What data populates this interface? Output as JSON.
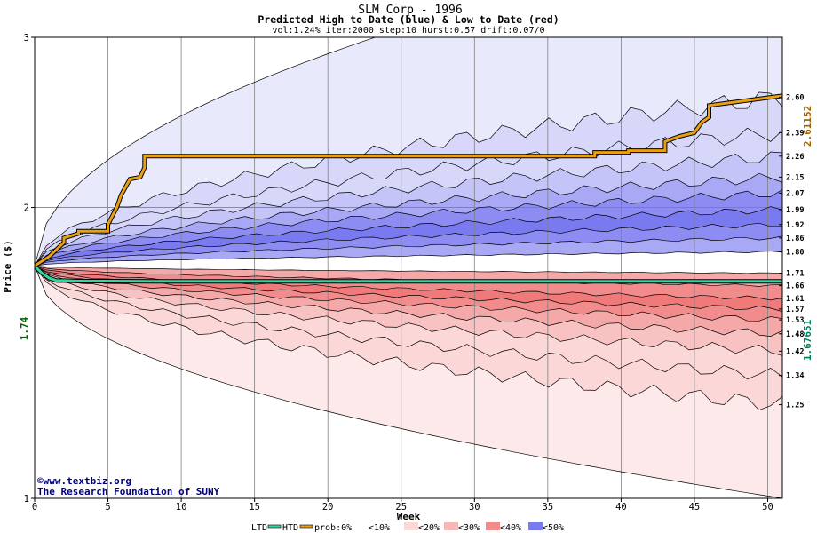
{
  "chart_data": {
    "type": "area",
    "title": "SLM Corp - 1996",
    "subtitle": "Predicted High to Date (blue) &  Low to Date (red)",
    "params": "vol:1.24% iter:2000 step:10 hurst:0.57 drift:0.07/0",
    "xlabel": "Week",
    "ylabel": "Price ($)",
    "xlim": [
      0,
      51
    ],
    "ylim": [
      1,
      3
    ],
    "y_scale": "log",
    "grid": true,
    "x_ticks": [
      0,
      5,
      10,
      15,
      20,
      25,
      30,
      35,
      40,
      45,
      50
    ],
    "y_ticks": [
      1,
      2,
      3
    ],
    "start_price": "1.74",
    "high_to_date_final": "2.61152",
    "low_to_date_final": "1.67651",
    "high_quantiles": [
      {
        "label": "1.80",
        "value": 1.8
      },
      {
        "label": "1.86",
        "value": 1.86
      },
      {
        "label": "1.92",
        "value": 1.92
      },
      {
        "label": "1.99",
        "value": 1.99
      },
      {
        "label": "2.07",
        "value": 2.07
      },
      {
        "label": "2.15",
        "value": 2.15
      },
      {
        "label": "2.26",
        "value": 2.26
      },
      {
        "label": "2.39",
        "value": 2.39
      },
      {
        "label": "2.60",
        "value": 2.6
      }
    ],
    "low_quantiles": [
      {
        "label": "1.71",
        "value": 1.71
      },
      {
        "label": "1.66",
        "value": 1.66
      },
      {
        "label": "1.61",
        "value": 1.61
      },
      {
        "label": "1.57",
        "value": 1.57
      },
      {
        "label": "1.53",
        "value": 1.53
      },
      {
        "label": "1.48",
        "value": 1.48
      },
      {
        "label": "1.42",
        "value": 1.42
      },
      {
        "label": "1.34",
        "value": 1.34
      },
      {
        "label": "1.25",
        "value": 1.25
      }
    ],
    "htd_series": {
      "x": [
        0,
        1,
        2,
        2,
        3,
        3,
        5,
        5,
        5.3,
        5.6,
        5.9,
        6.2,
        6.5,
        7.2,
        7.5,
        7.5,
        20,
        38.2,
        38.2,
        40.5,
        40.5,
        43,
        43,
        44,
        45,
        45.5,
        46,
        46,
        51
      ],
      "y": [
        1.74,
        1.78,
        1.84,
        1.86,
        1.88,
        1.89,
        1.89,
        1.92,
        1.96,
        2.0,
        2.06,
        2.1,
        2.14,
        2.15,
        2.2,
        2.26,
        2.26,
        2.26,
        2.28,
        2.28,
        2.29,
        2.29,
        2.34,
        2.37,
        2.39,
        2.45,
        2.48,
        2.55,
        2.61
      ]
    },
    "ltd_series": {
      "x": [
        0,
        0.5,
        1.0,
        1.5,
        2.0,
        3.0,
        5.0,
        8.0,
        12,
        20,
        30,
        40,
        51
      ],
      "y": [
        1.74,
        1.71,
        1.69,
        1.68,
        1.68,
        1.678,
        1.678,
        1.677,
        1.677,
        1.677,
        1.677,
        1.677,
        1.677
      ]
    },
    "legend": {
      "ltd": "LTD",
      "htd": "HTD",
      "prob_prefix": "prob:0%",
      "items": [
        "<10%",
        "<20%",
        "<30%",
        "<40%",
        "<50%"
      ]
    },
    "colors": {
      "high_bands": [
        "#e9e9fc",
        "#d7d7fa",
        "#c4c4f8",
        "#a8a8f5",
        "#8c8cf2",
        "#7a7af0"
      ],
      "low_bands": [
        "#fde9e9",
        "#fbd7d7",
        "#f8c2c2",
        "#f5a8a8",
        "#f28c8c",
        "#f07a7a"
      ],
      "htd_line": "#e8a010",
      "ltd_line": "#30d8a0",
      "plot_bg": "#ffffff",
      "grid": "#808080",
      "start_label": "#006400",
      "htd_label": "#a06000",
      "ltd_label": "#008060"
    }
  },
  "credit": {
    "site": "©www.textbiz.org",
    "org": "The Research Foundation of SUNY"
  }
}
